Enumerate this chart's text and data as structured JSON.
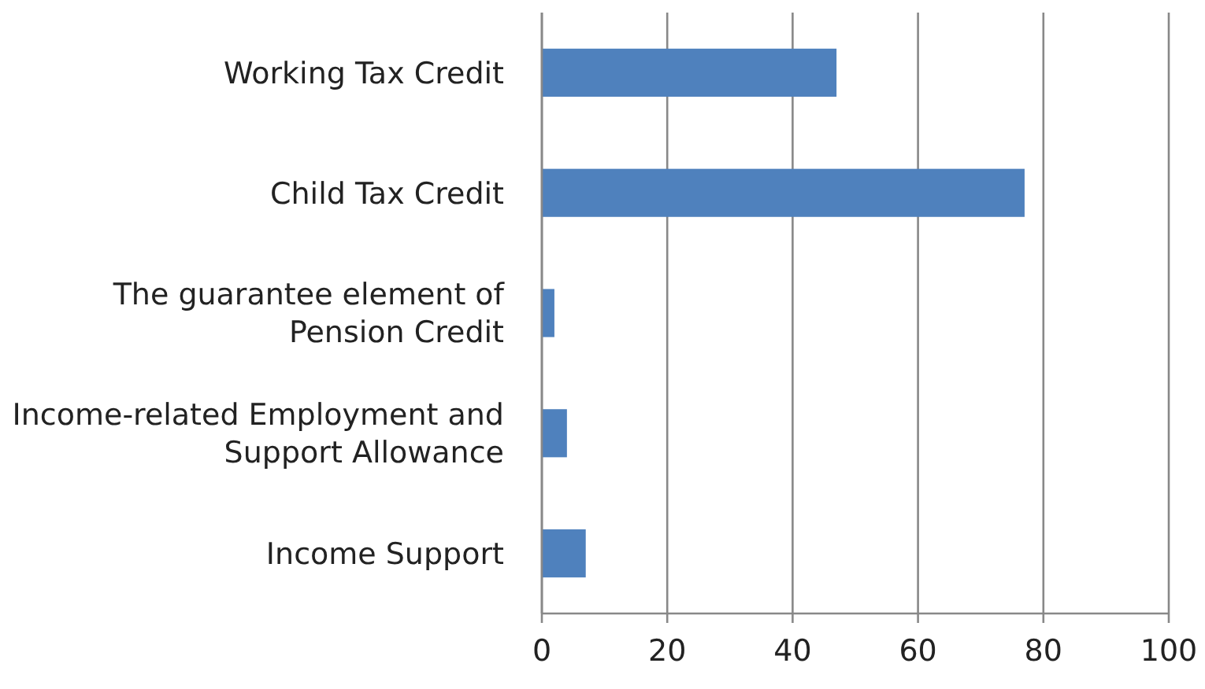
{
  "chart_data": {
    "type": "bar",
    "orientation": "horizontal",
    "categories": [
      "Working Tax Credit",
      "Child Tax Credit",
      "The guarantee element of Pension Credit",
      "Income-related Employment and Support Allowance",
      "Income Support"
    ],
    "values": [
      47,
      77,
      2,
      4,
      7
    ],
    "color": "#4f81bd",
    "xlim": [
      0,
      100
    ],
    "xticks": [
      0,
      20,
      40,
      60,
      80,
      100
    ],
    "grid": "x"
  }
}
